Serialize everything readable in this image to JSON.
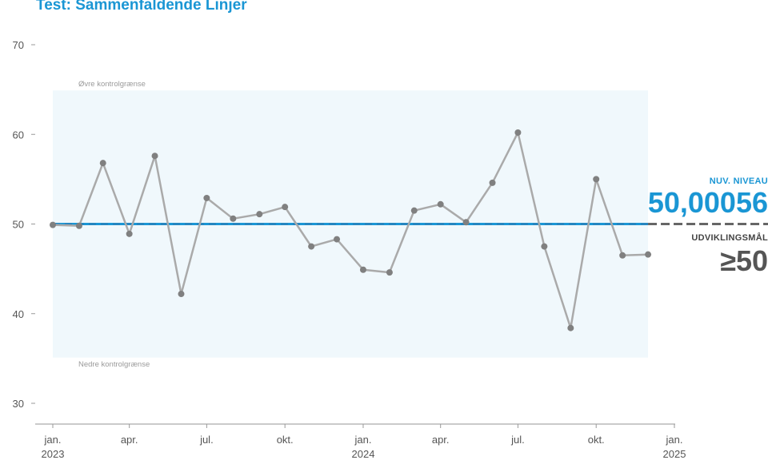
{
  "title": "Test: Sammenfaldende Linjer",
  "colors": {
    "title": "#1a96d4",
    "series": "#aaaaaa",
    "points": "#808080",
    "center": "#1a96d4",
    "goal": "#666666",
    "band": "#f0f8fc"
  },
  "chart_data": {
    "type": "line",
    "title": "Test: Sammenfaldende Linjer",
    "xlabel": "",
    "ylabel": "",
    "ylim": [
      27,
      71
    ],
    "yticks": [
      30,
      40,
      50,
      60,
      70
    ],
    "xlim": [
      "2022-12-01",
      "2025-01-20"
    ],
    "xticks": [
      {
        "date": "2023-01-01",
        "line1": "jan.",
        "line2": "2023"
      },
      {
        "date": "2023-04-01",
        "line1": "apr.",
        "line2": ""
      },
      {
        "date": "2023-07-01",
        "line1": "jul.",
        "line2": ""
      },
      {
        "date": "2023-10-01",
        "line1": "okt.",
        "line2": ""
      },
      {
        "date": "2024-01-01",
        "line1": "jan.",
        "line2": "2024"
      },
      {
        "date": "2024-04-01",
        "line1": "apr.",
        "line2": ""
      },
      {
        "date": "2024-07-01",
        "line1": "jul.",
        "line2": ""
      },
      {
        "date": "2024-10-01",
        "line1": "okt.",
        "line2": ""
      },
      {
        "date": "2025-01-01",
        "line1": "jan.",
        "line2": "2025"
      }
    ],
    "series": [
      {
        "x": [
          "2023-01-01",
          "2023-02-01",
          "2023-03-01",
          "2023-04-01",
          "2023-05-01",
          "2023-06-01",
          "2023-07-01",
          "2023-08-01",
          "2023-09-01",
          "2023-10-01",
          "2023-11-01",
          "2023-12-01",
          "2024-01-01",
          "2024-02-01",
          "2024-03-01",
          "2024-04-01",
          "2024-05-01",
          "2024-06-01",
          "2024-07-01",
          "2024-08-01",
          "2024-09-01",
          "2024-10-01",
          "2024-11-01",
          "2024-12-01"
        ],
        "values": [
          49.9,
          49.8,
          56.8,
          48.9,
          57.6,
          42.2,
          52.9,
          50.6,
          51.1,
          51.9,
          47.5,
          48.3,
          44.9,
          44.6,
          51.5,
          52.2,
          50.2,
          54.6,
          60.2,
          47.5,
          38.4,
          55.0,
          46.5,
          46.6
        ]
      }
    ],
    "center_line": 50.00056,
    "goal": 50,
    "upper_control_limit": 64.9,
    "lower_control_limit": 35.1,
    "upper_limit_label": "Øvre kontrolgrænse",
    "lower_limit_label": "Nedre kontrolgrænse",
    "current_level_label": "NUV. NIVEAU",
    "current_level_value": "50,00056",
    "goal_label": "UDVIKLINGSMÅL",
    "goal_value": "≥50"
  }
}
